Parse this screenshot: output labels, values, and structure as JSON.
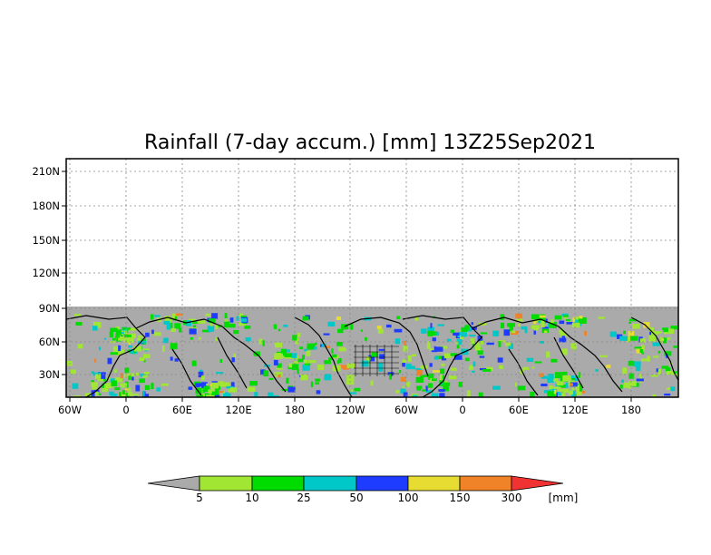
{
  "map": {
    "title": "Rainfall (7-day accum.) [mm] 13Z25Sep2021",
    "lat_ticks": [
      "210N",
      "180N",
      "150N",
      "120N",
      "90N",
      "60N",
      "30N"
    ],
    "lon_ticks": [
      "60W",
      "0",
      "60E",
      "120E",
      "180",
      "120W",
      "60W",
      "0",
      "60E",
      "120E",
      "180"
    ],
    "land_color": "#aaaaaa",
    "border_color": "#000000"
  },
  "legend": {
    "units": "[mm]",
    "thresholds": [
      "5",
      "10",
      "25",
      "50",
      "100",
      "150",
      "300"
    ],
    "colors": {
      "below": "#aaaaaa",
      "bins": [
        "#a0e632",
        "#00dc00",
        "#00c8c8",
        "#1e3cff",
        "#e6dc32",
        "#f08228"
      ],
      "above": "#f03232"
    }
  }
}
